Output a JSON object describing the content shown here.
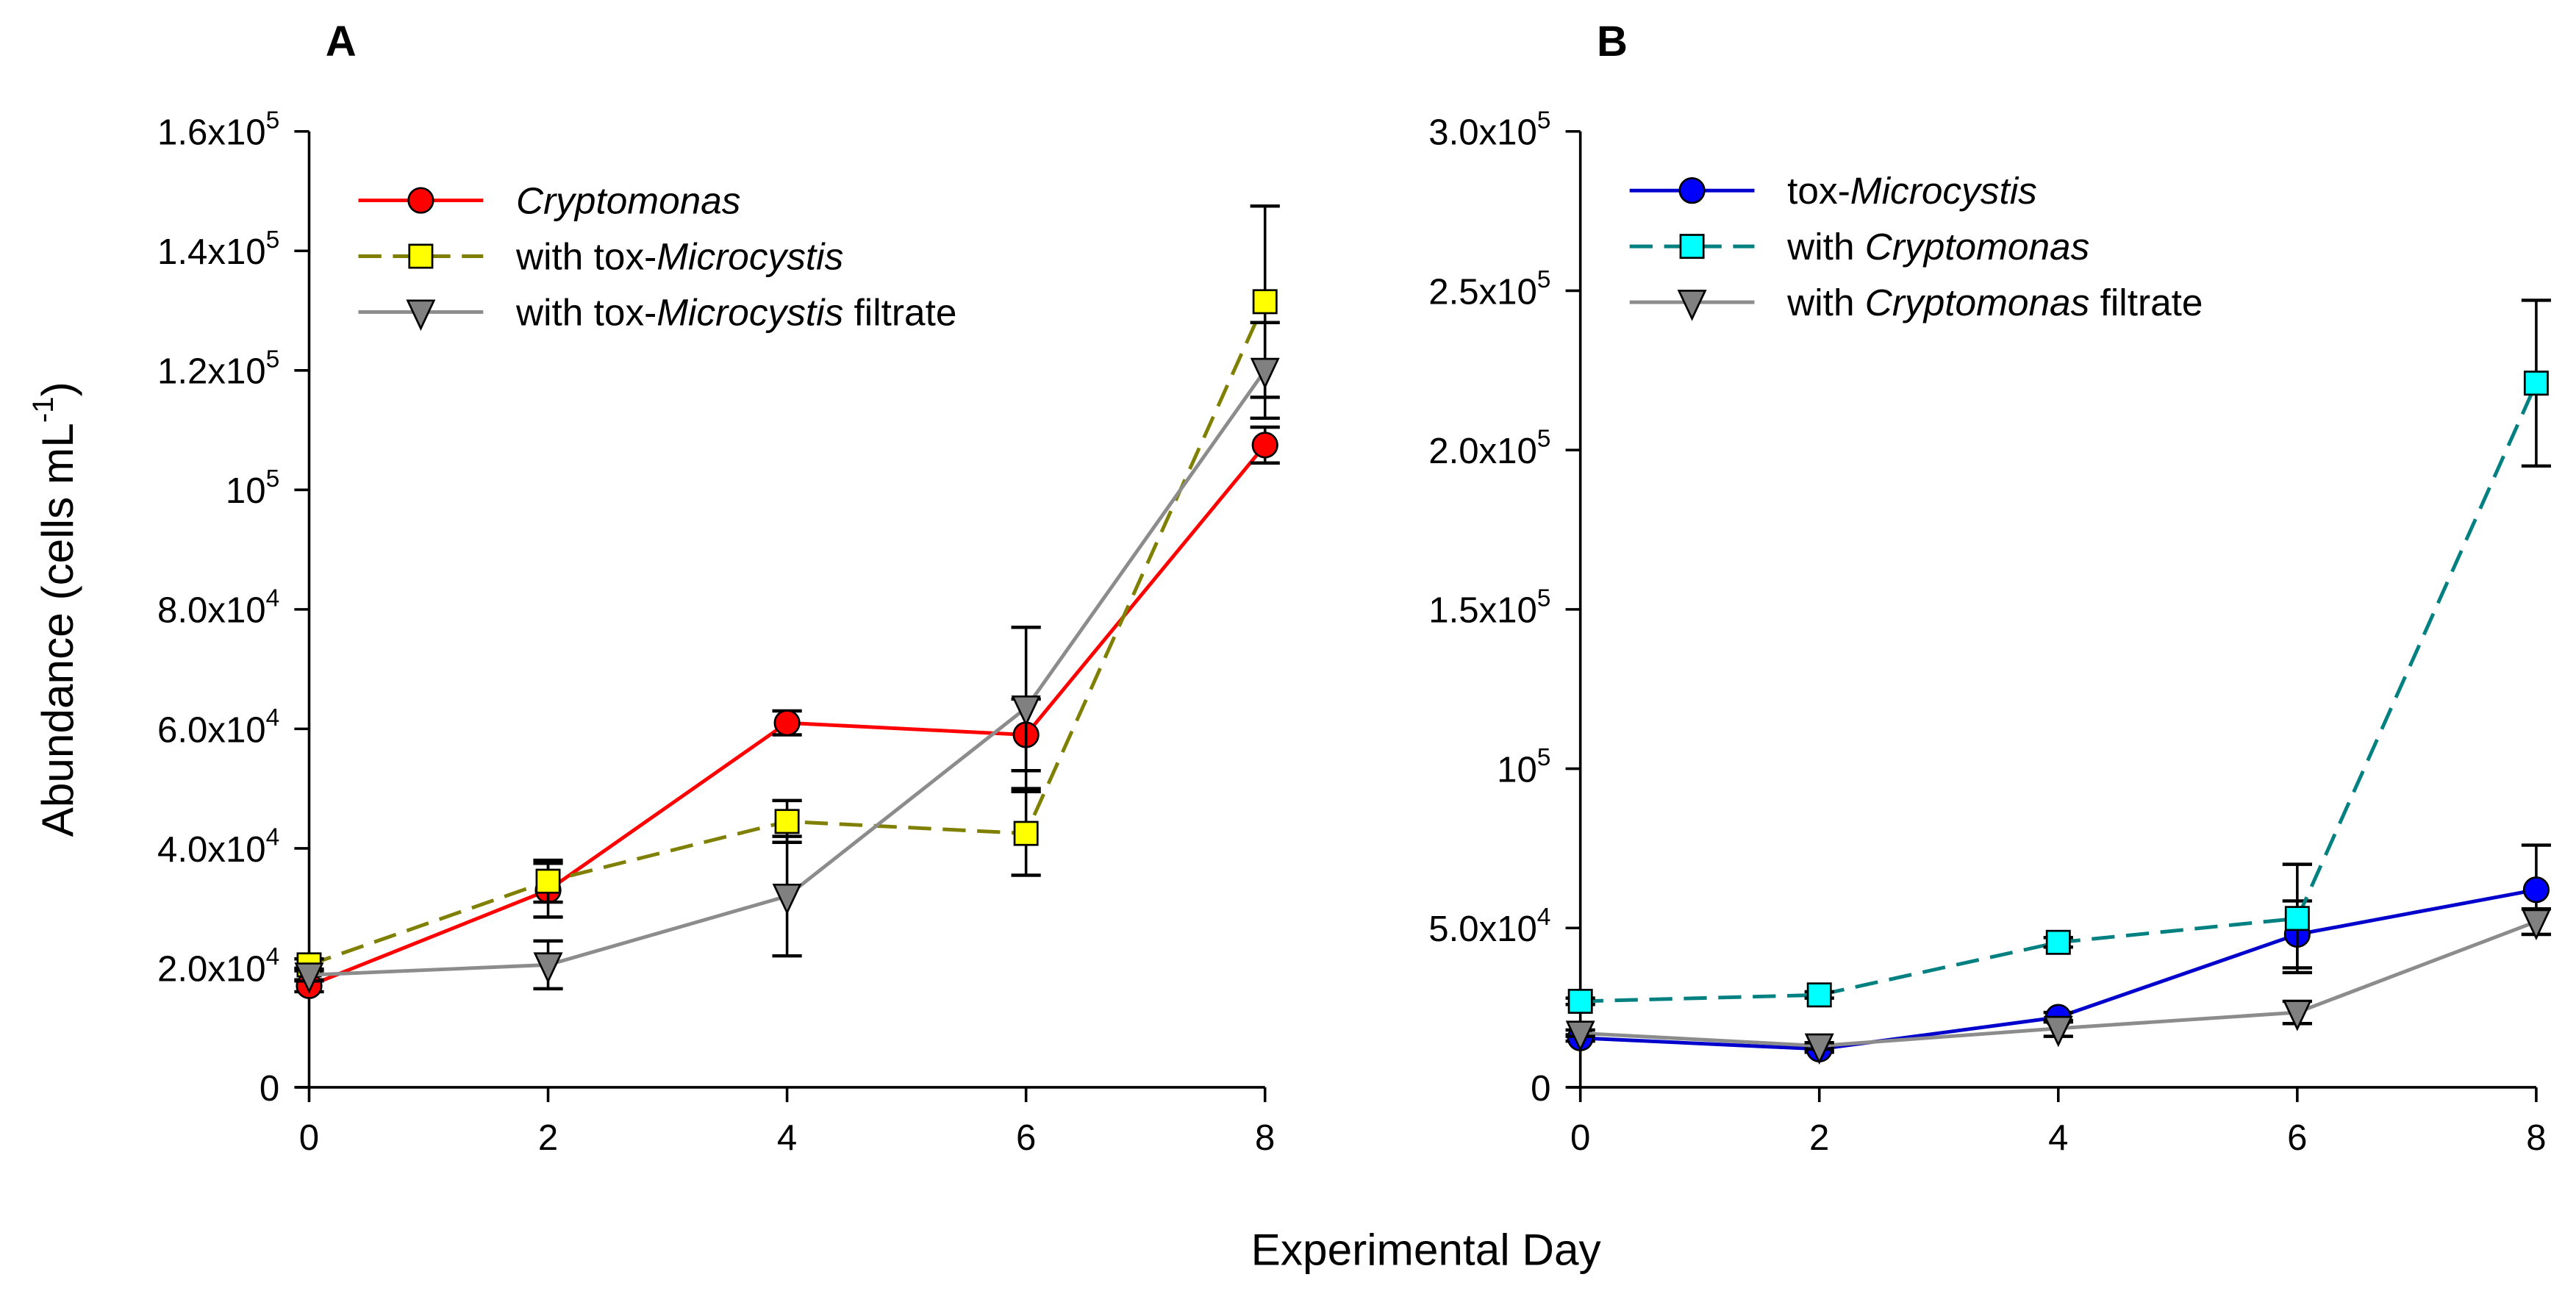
{
  "chart_data": [
    {
      "type": "line",
      "panel_label": "A",
      "x": [
        0,
        2,
        4,
        6,
        8
      ],
      "xlim": [
        0,
        8
      ],
      "ylim": [
        0,
        160000
      ],
      "xticks": [
        "0",
        "2",
        "4",
        "6",
        "8"
      ],
      "yticks": [
        {
          "value": 0,
          "base": "0",
          "exp": ""
        },
        {
          "value": 20000,
          "base": "2.0x10",
          "exp": "4"
        },
        {
          "value": 40000,
          "base": "4.0x10",
          "exp": "4"
        },
        {
          "value": 60000,
          "base": "6.0x10",
          "exp": "4"
        },
        {
          "value": 80000,
          "base": "8.0x10",
          "exp": "4"
        },
        {
          "value": 100000,
          "base": "10",
          "exp": "5"
        },
        {
          "value": 120000,
          "base": "1.2x10",
          "exp": "5"
        },
        {
          "value": 140000,
          "base": "1.4x10",
          "exp": "5"
        },
        {
          "value": 160000,
          "base": "1.6x10",
          "exp": "5"
        }
      ],
      "legend_placement": "top-left",
      "series": [
        {
          "name": "Cryptomonas",
          "label": [
            {
              "t": "Cryptomonas",
              "i": true
            }
          ],
          "color": "#ff0000",
          "fill": "#ff0000",
          "marker": "circle",
          "dash": false,
          "values": [
            17000,
            33000,
            61000,
            59000,
            107500
          ],
          "errors": [
            1000,
            4500,
            2000,
            6000,
            3000
          ]
        },
        {
          "name": "with tox-Microcystis",
          "label": [
            {
              "t": "with tox-",
              "i": false
            },
            {
              "t": "Microcystis",
              "i": true
            }
          ],
          "color": "#808000",
          "fill": "#ffff00",
          "marker": "square",
          "dash": true,
          "values": [
            20500,
            34500,
            44500,
            42500,
            131500
          ],
          "errors": [
            1000,
            3500,
            3500,
            7000,
            16000
          ]
        },
        {
          "name": "with tox-Microcystis filtrate",
          "label": [
            {
              "t": "with tox-",
              "i": false
            },
            {
              "t": "Microcystis",
              "i": true
            },
            {
              "t": " filtrate",
              "i": false
            }
          ],
          "color": "#8c8c8c",
          "fill": "#808080",
          "marker": "triangle-down",
          "dash": false,
          "values": [
            18800,
            20500,
            32000,
            63500,
            120000
          ],
          "errors": [
            1000,
            4000,
            10000,
            13500,
            8000
          ]
        }
      ]
    },
    {
      "type": "line",
      "panel_label": "B",
      "x": [
        0,
        2,
        4,
        6,
        8
      ],
      "xlim": [
        0,
        8
      ],
      "ylim": [
        0,
        300000
      ],
      "xticks": [
        "0",
        "2",
        "4",
        "6",
        "8"
      ],
      "yticks": [
        {
          "value": 0,
          "base": "0",
          "exp": ""
        },
        {
          "value": 50000,
          "base": "5.0x10",
          "exp": "4"
        },
        {
          "value": 100000,
          "base": "10",
          "exp": "5"
        },
        {
          "value": 150000,
          "base": "1.5x10",
          "exp": "5"
        },
        {
          "value": 200000,
          "base": "2.0x10",
          "exp": "5"
        },
        {
          "value": 250000,
          "base": "2.5x10",
          "exp": "5"
        },
        {
          "value": 300000,
          "base": "3.0x10",
          "exp": "5"
        }
      ],
      "legend_placement": "top-left",
      "series": [
        {
          "name": "tox-Microcystis",
          "label": [
            {
              "t": "tox-",
              "i": false
            },
            {
              "t": "Microcystis",
              "i": true
            }
          ],
          "color": "#0000cc",
          "fill": "#0000ff",
          "marker": "circle",
          "dash": false,
          "values": [
            15500,
            12000,
            22000,
            48000,
            62000
          ],
          "errors": [
            1000,
            1000,
            1500,
            10500,
            14000
          ]
        },
        {
          "name": "with Cryptomonas",
          "label": [
            {
              "t": "with ",
              "i": false
            },
            {
              "t": "Cryptomonas",
              "i": true
            }
          ],
          "color": "#008080",
          "fill": "#00ffff",
          "marker": "square",
          "dash": true,
          "values": [
            27000,
            29000,
            45500,
            53000,
            221000
          ],
          "errors": [
            1000,
            1000,
            1500,
            17000,
            26000
          ]
        },
        {
          "name": "with Cryptomonas filtrate",
          "label": [
            {
              "t": "with ",
              "i": false
            },
            {
              "t": "Cryptomonas",
              "i": true
            },
            {
              "t": " filtrate",
              "i": false
            }
          ],
          "color": "#8c8c8c",
          "fill": "#808080",
          "marker": "triangle-down",
          "dash": false,
          "values": [
            17000,
            13000,
            18500,
            23500,
            52000
          ],
          "errors": [
            1000,
            1000,
            2500,
            3500,
            4000
          ]
        }
      ]
    }
  ],
  "ylabel": {
    "base": "Abundance (cells mL",
    "exp": "-1",
    "close": ")"
  },
  "xlabel": "Experimental Day"
}
